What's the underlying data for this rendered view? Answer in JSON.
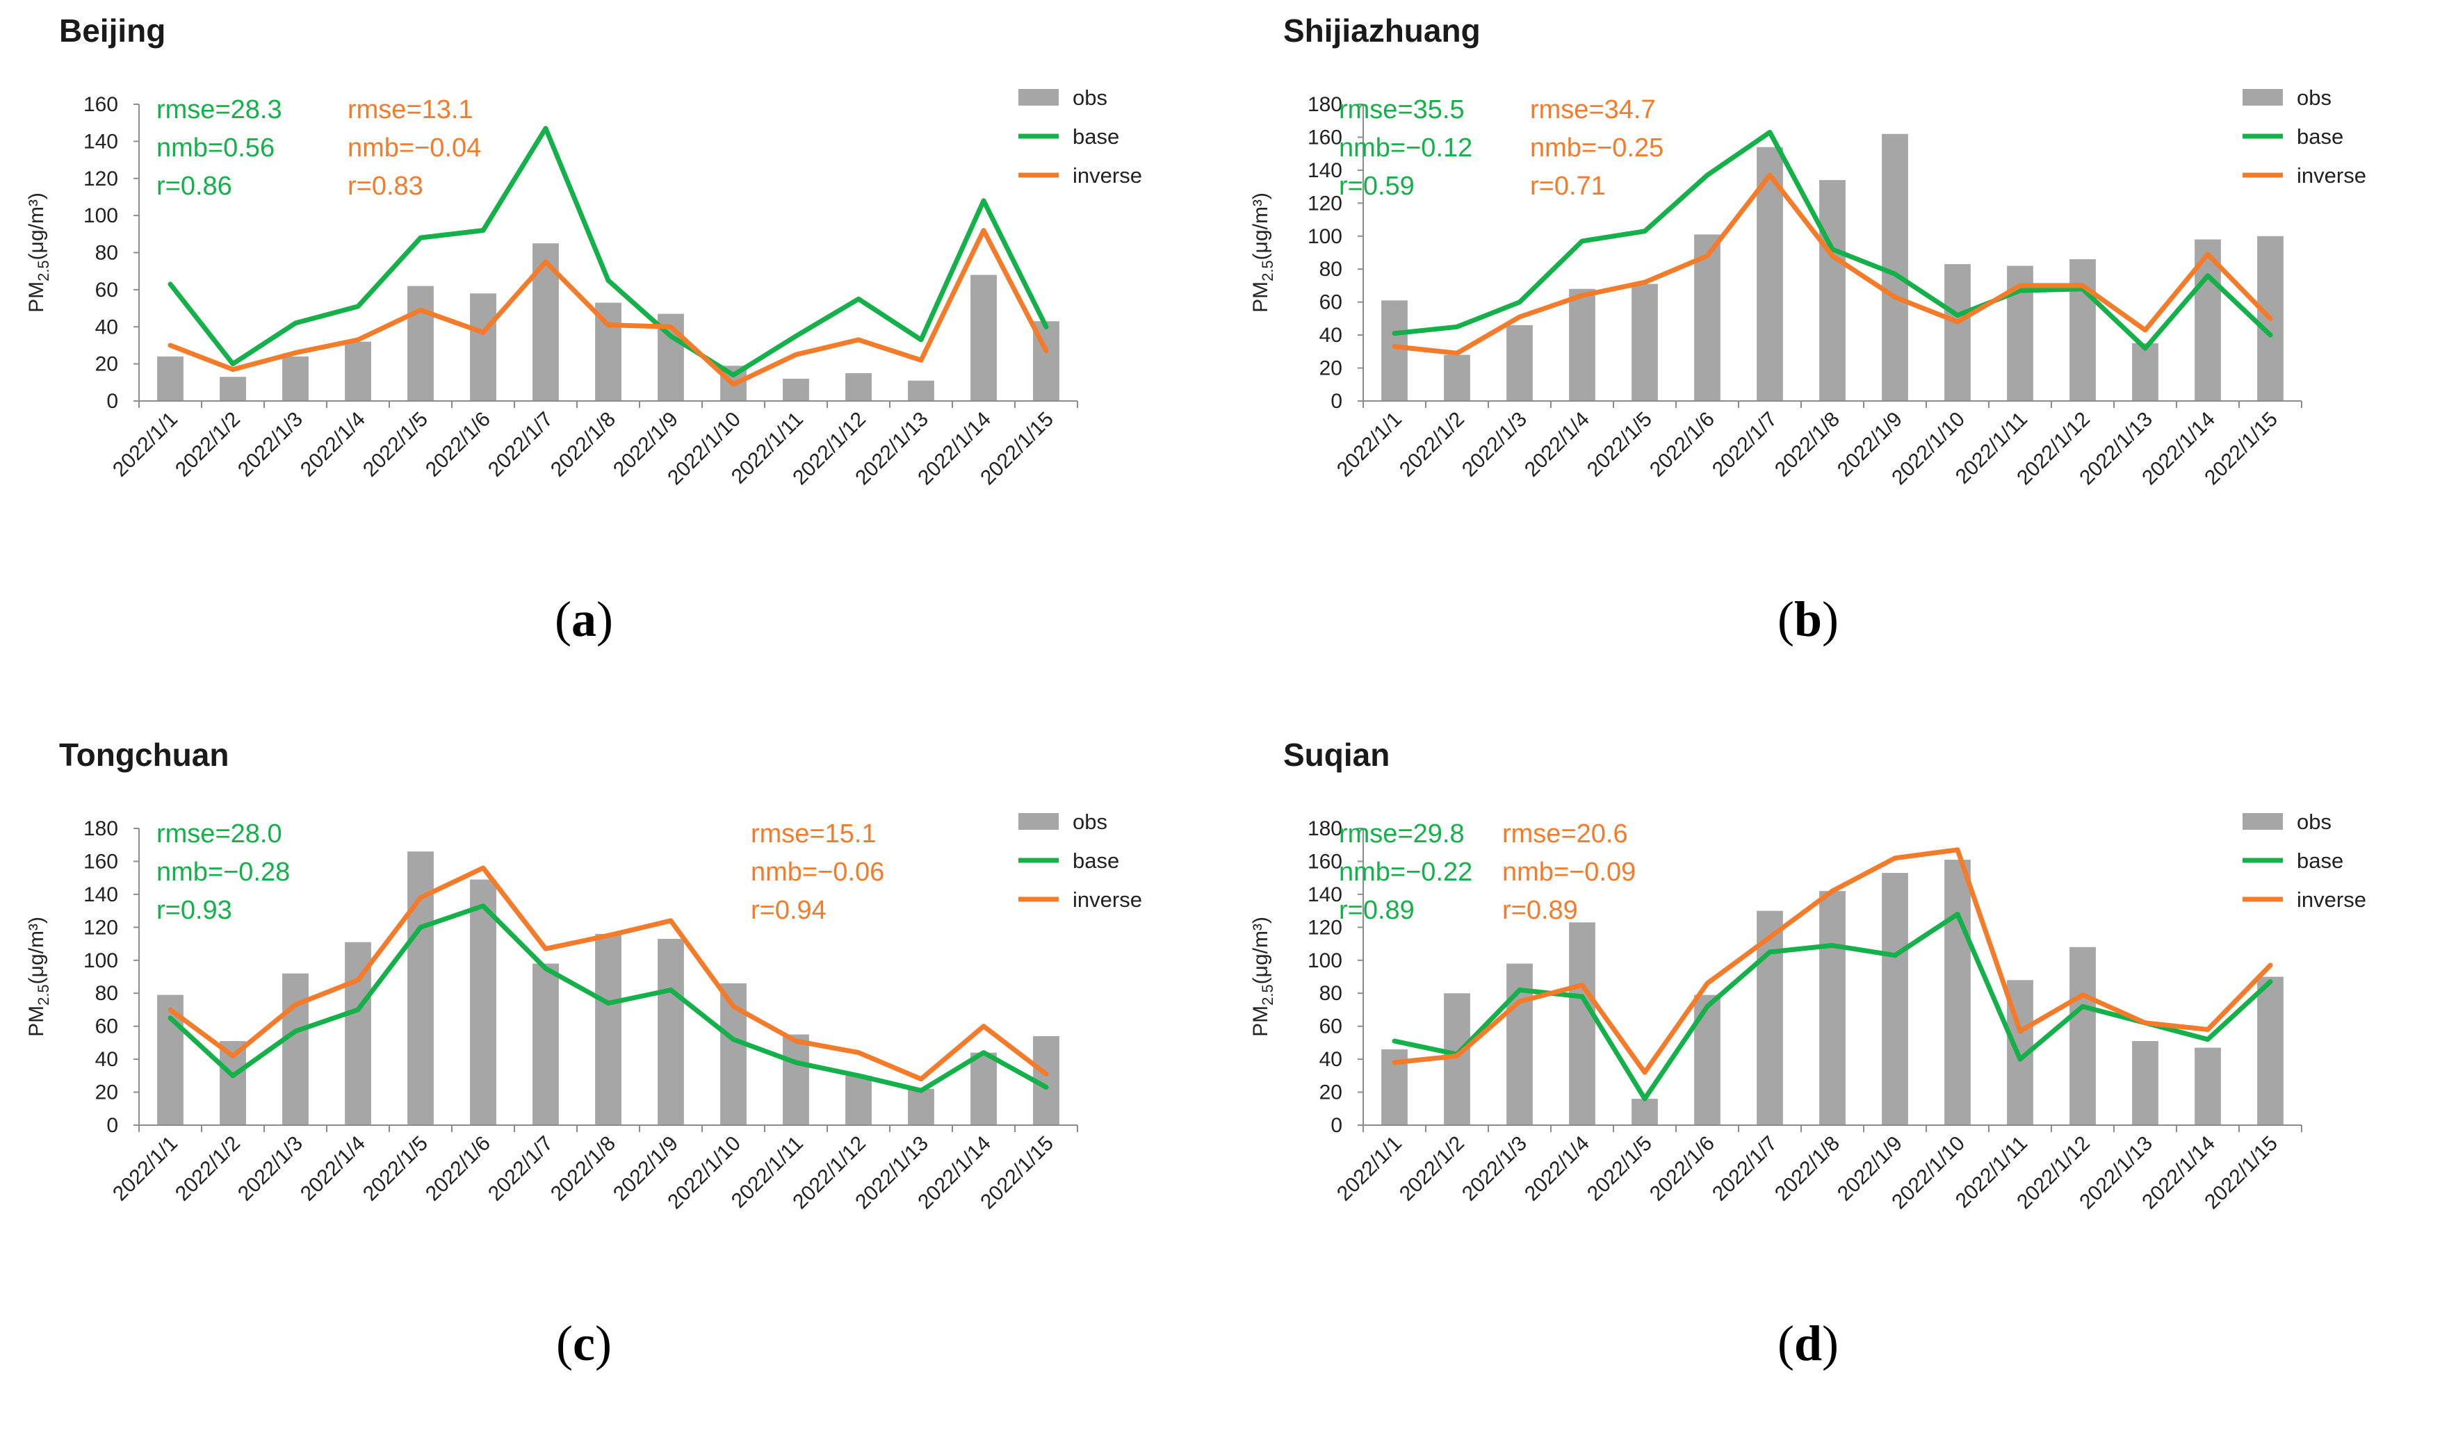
{
  "figure": {
    "ylabel_main": "PM",
    "ylabel_sub": "2.5",
    "ylabel_unit": "(μg/m³)"
  },
  "colors": {
    "obs": "#a6a6a6",
    "base": "#14b04a",
    "inverse": "#f47b2a",
    "axis": "#8c8c8c",
    "text": "#222222"
  },
  "chart_data": [
    {
      "type": "bar+line",
      "title": "Beijing",
      "caption": {
        "open": "(",
        "letter": "a",
        "close": ")"
      },
      "categories": [
        "2022/1/1",
        "2022/1/2",
        "2022/1/3",
        "2022/1/4",
        "2022/1/5",
        "2022/1/6",
        "2022/1/7",
        "2022/1/8",
        "2022/1/9",
        "2022/1/10",
        "2022/1/11",
        "2022/1/12",
        "2022/1/13",
        "2022/1/14",
        "2022/1/15"
      ],
      "ylim": [
        0,
        160
      ],
      "yticks": [
        0,
        20,
        40,
        60,
        80,
        100,
        120,
        140,
        160
      ],
      "series": [
        {
          "name": "obs",
          "kind": "bar",
          "values": [
            24,
            13,
            24,
            32,
            62,
            58,
            85,
            53,
            47,
            19,
            12,
            15,
            11,
            68,
            43
          ]
        },
        {
          "name": "base",
          "kind": "line",
          "values": [
            63,
            20,
            42,
            51,
            88,
            92,
            147,
            65,
            35,
            14,
            35,
            55,
            33,
            108,
            40
          ]
        },
        {
          "name": "inverse",
          "kind": "line",
          "values": [
            30,
            17,
            26,
            33,
            49,
            37,
            75,
            41,
            40,
            9,
            25,
            33,
            22,
            92,
            27
          ]
        }
      ],
      "legend": [
        "obs",
        "base",
        "inverse"
      ],
      "stats": {
        "base": [
          "rmse=28.3",
          "nmb=0.56",
          "r=0.86"
        ],
        "inverse": [
          "rmse=13.1",
          "nmb=−0.04",
          "r=0.83"
        ]
      }
    },
    {
      "type": "bar+line",
      "title": "Shijiazhuang",
      "caption": {
        "open": "(",
        "letter": "b",
        "close": ")"
      },
      "categories": [
        "2022/1/1",
        "2022/1/2",
        "2022/1/3",
        "2022/1/4",
        "2022/1/5",
        "2022/1/6",
        "2022/1/7",
        "2022/1/8",
        "2022/1/9",
        "2022/1/10",
        "2022/1/11",
        "2022/1/12",
        "2022/1/13",
        "2022/1/14",
        "2022/1/15"
      ],
      "ylim": [
        0,
        180
      ],
      "yticks": [
        0,
        20,
        40,
        60,
        80,
        100,
        120,
        140,
        160,
        180
      ],
      "series": [
        {
          "name": "obs",
          "kind": "bar",
          "values": [
            61,
            28,
            46,
            68,
            71,
            101,
            154,
            134,
            162,
            83,
            82,
            86,
            35,
            98,
            100
          ]
        },
        {
          "name": "base",
          "kind": "line",
          "values": [
            41,
            45,
            60,
            97,
            103,
            137,
            163,
            92,
            77,
            52,
            67,
            68,
            32,
            76,
            40
          ]
        },
        {
          "name": "inverse",
          "kind": "line",
          "values": [
            33,
            29,
            51,
            64,
            72,
            88,
            137,
            88,
            63,
            48,
            70,
            70,
            43,
            89,
            50
          ]
        }
      ],
      "legend": [
        "obs",
        "base",
        "inverse"
      ],
      "stats": {
        "base": [
          "rmse=35.5",
          "nmb=−0.12",
          "r=0.59"
        ],
        "inverse": [
          "rmse=34.7",
          "nmb=−0.25",
          "r=0.71"
        ]
      }
    },
    {
      "type": "bar+line",
      "title": "Tongchuan",
      "caption": {
        "open": "(",
        "letter": "c",
        "close": ")"
      },
      "categories": [
        "2022/1/1",
        "2022/1/2",
        "2022/1/3",
        "2022/1/4",
        "2022/1/5",
        "2022/1/6",
        "2022/1/7",
        "2022/1/8",
        "2022/1/9",
        "2022/1/10",
        "2022/1/11",
        "2022/1/12",
        "2022/1/13",
        "2022/1/14",
        "2022/1/15"
      ],
      "ylim": [
        0,
        180
      ],
      "yticks": [
        0,
        20,
        40,
        60,
        80,
        100,
        120,
        140,
        160,
        180
      ],
      "series": [
        {
          "name": "obs",
          "kind": "bar",
          "values": [
            79,
            51,
            92,
            111,
            166,
            149,
            98,
            116,
            113,
            86,
            55,
            30,
            22,
            44,
            54
          ]
        },
        {
          "name": "base",
          "kind": "line",
          "values": [
            65,
            30,
            57,
            70,
            120,
            133,
            95,
            74,
            82,
            52,
            38,
            30,
            21,
            44,
            23
          ]
        },
        {
          "name": "inverse",
          "kind": "line",
          "values": [
            70,
            42,
            73,
            88,
            138,
            156,
            107,
            115,
            124,
            72,
            51,
            44,
            28,
            60,
            31
          ]
        }
      ],
      "legend": [
        "obs",
        "base",
        "inverse"
      ],
      "stats": {
        "base": [
          "rmse=28.0",
          "nmb=−0.28",
          "r=0.93"
        ],
        "inverse": [
          "rmse=15.1",
          "nmb=−0.06",
          "r=0.94"
        ]
      }
    },
    {
      "type": "bar+line",
      "title": "Suqian",
      "caption": {
        "open": "(",
        "letter": "d",
        "close": ")"
      },
      "categories": [
        "2022/1/1",
        "2022/1/2",
        "2022/1/3",
        "2022/1/4",
        "2022/1/5",
        "2022/1/6",
        "2022/1/7",
        "2022/1/8",
        "2022/1/9",
        "2022/1/10",
        "2022/1/11",
        "2022/1/12",
        "2022/1/13",
        "2022/1/14",
        "2022/1/15"
      ],
      "ylim": [
        0,
        180
      ],
      "yticks": [
        0,
        20,
        40,
        60,
        80,
        100,
        120,
        140,
        160,
        180
      ],
      "series": [
        {
          "name": "obs",
          "kind": "bar",
          "values": [
            46,
            80,
            98,
            123,
            16,
            79,
            130,
            142,
            153,
            161,
            88,
            108,
            51,
            47,
            90
          ]
        },
        {
          "name": "base",
          "kind": "line",
          "values": [
            51,
            43,
            82,
            78,
            16,
            72,
            105,
            109,
            103,
            128,
            40,
            72,
            62,
            52,
            87
          ]
        },
        {
          "name": "inverse",
          "kind": "line",
          "values": [
            38,
            42,
            75,
            85,
            32,
            86,
            114,
            142,
            162,
            167,
            57,
            79,
            62,
            58,
            97
          ]
        }
      ],
      "legend": [
        "obs",
        "base",
        "inverse"
      ],
      "stats": {
        "base": [
          "rmse=29.8",
          "nmb=−0.22",
          "r=0.89"
        ],
        "inverse": [
          "rmse=20.6",
          "nmb=−0.09",
          "r=0.89"
        ]
      }
    }
  ]
}
